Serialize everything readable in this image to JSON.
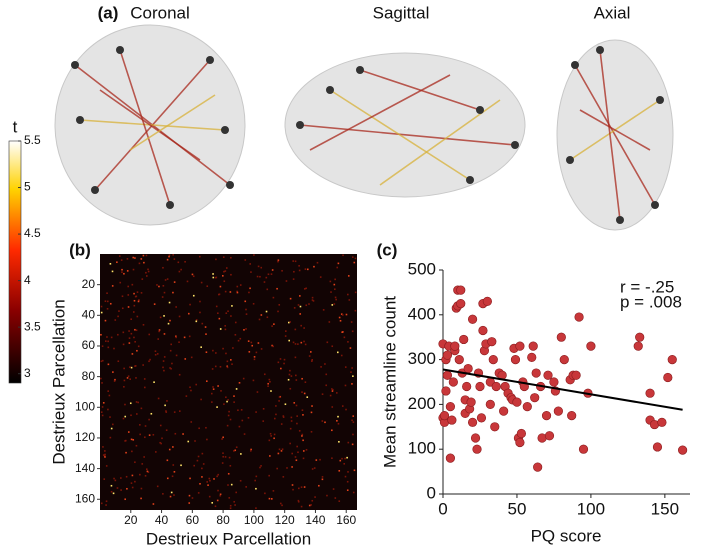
{
  "chart_data": [
    {
      "type": "brain-views",
      "label": "(a)",
      "views": [
        "Coronal",
        "Sagittal",
        "Axial"
      ]
    },
    {
      "type": "colorbar",
      "title": "t",
      "ylim": [
        2.9,
        5.5
      ],
      "yticks": [
        3,
        3.5,
        4,
        4.5,
        5,
        5.5
      ]
    },
    {
      "type": "heatmap",
      "label": "(b)",
      "xlabel": "Destrieux Parcellation",
      "ylabel": "Destrieux Parcellation",
      "xlim": [
        0,
        167
      ],
      "ylim": [
        0,
        167
      ],
      "xticks": [
        20,
        40,
        60,
        80,
        100,
        120,
        140,
        160
      ],
      "yticks": [
        20,
        40,
        60,
        80,
        100,
        120,
        140,
        160
      ]
    },
    {
      "type": "scatter",
      "label": "(c)",
      "xlabel": "PQ score",
      "ylabel": "Mean streamline count",
      "xlim": [
        0,
        167
      ],
      "ylim": [
        0,
        500
      ],
      "xticks": [
        0,
        50,
        100,
        150
      ],
      "yticks": [
        0,
        100,
        200,
        300,
        400,
        500
      ],
      "color": "#c8373a",
      "annotations": [
        "r = -.25",
        "p = .008"
      ],
      "x": [
        0,
        0,
        1,
        1,
        2,
        2,
        3,
        3,
        4,
        5,
        5,
        6,
        7,
        8,
        8,
        9,
        10,
        10,
        11,
        12,
        12,
        13,
        14,
        15,
        15,
        16,
        17,
        18,
        19,
        20,
        20,
        22,
        23,
        24,
        25,
        26,
        27,
        27,
        28,
        29,
        30,
        32,
        32,
        33,
        34,
        35,
        36,
        38,
        40,
        41,
        42,
        44,
        46,
        47,
        48,
        49,
        50,
        51,
        52,
        52,
        53,
        54,
        55,
        57,
        60,
        61,
        62,
        63,
        64,
        66,
        67,
        70,
        71,
        72,
        75,
        76,
        78,
        80,
        82,
        86,
        87,
        88,
        90,
        92,
        95,
        98,
        100,
        132,
        133,
        140,
        140,
        143,
        145,
        148,
        152,
        155,
        162
      ],
      "y": [
        335,
        170,
        160,
        175,
        230,
        300,
        310,
        265,
        330,
        80,
        195,
        165,
        250,
        320,
        330,
        415,
        455,
        420,
        300,
        455,
        425,
        270,
        345,
        210,
        180,
        240,
        280,
        190,
        205,
        390,
        160,
        125,
        100,
        270,
        240,
        170,
        365,
        425,
        320,
        335,
        430,
        250,
        200,
        340,
        300,
        150,
        240,
        270,
        265,
        185,
        240,
        225,
        215,
        210,
        325,
        300,
        205,
        125,
        115,
        330,
        135,
        250,
        240,
        195,
        305,
        330,
        215,
        270,
        60,
        240,
        125,
        175,
        265,
        130,
        250,
        230,
        185,
        350,
        300,
        255,
        175,
        265,
        265,
        395,
        100,
        225,
        330,
        330,
        350,
        225,
        165,
        155,
        105,
        160,
        260,
        300,
        98
      ],
      "fit": {
        "x": [
          0,
          162
        ],
        "y": [
          278,
          188
        ]
      }
    }
  ]
}
